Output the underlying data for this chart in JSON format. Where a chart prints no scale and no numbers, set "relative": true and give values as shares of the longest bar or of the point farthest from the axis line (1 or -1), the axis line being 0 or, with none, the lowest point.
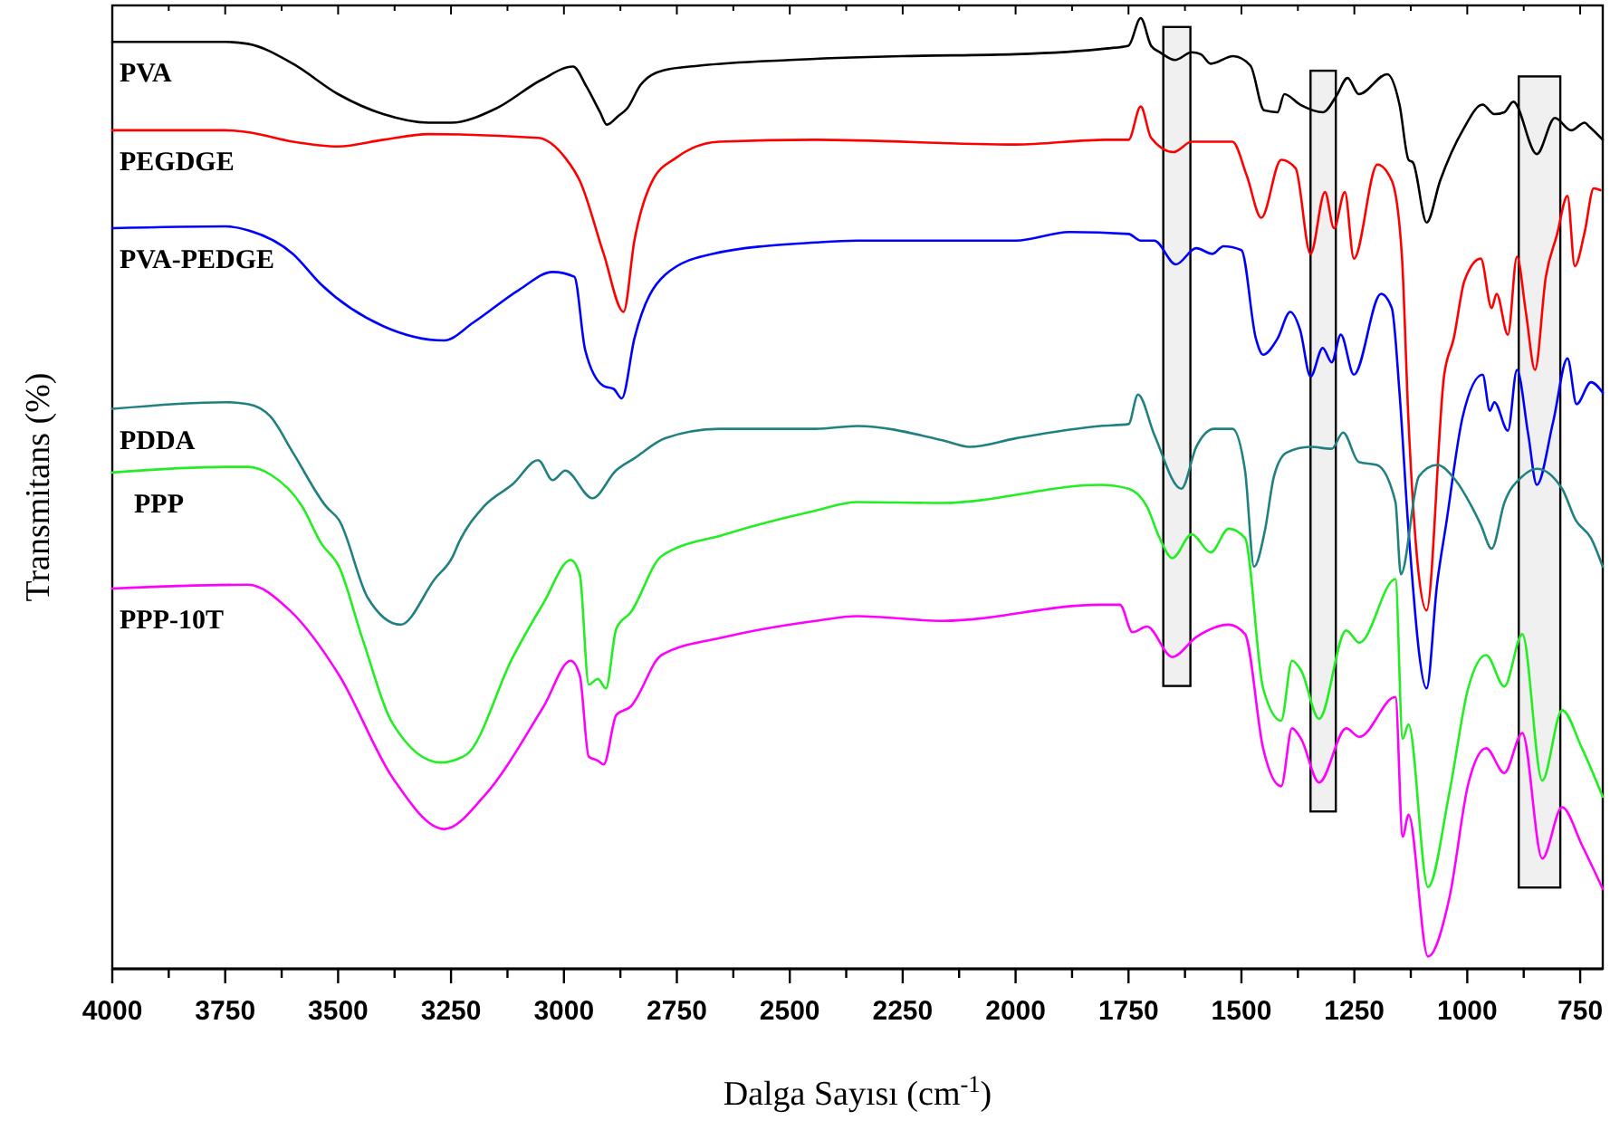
{
  "chart_data": {
    "type": "line",
    "relative": true,
    "xlabel": "Dalga Sayısı (cm$^{-1}$)",
    "ylabel": "Transmitans (%)",
    "xlim": [
      4000,
      700
    ],
    "xticks": [
      4000,
      {
        "value": 3875,
        "label": null
      },
      3750,
      {
        "value": 3625,
        "label": null
      },
      3500,
      {
        "value": 3375,
        "label": null
      },
      3250,
      {
        "value": 3125,
        "label": null
      },
      3000,
      {
        "value": 2875,
        "label": null
      },
      2750,
      {
        "value": 2625,
        "label": null
      },
      2500,
      {
        "value": 2375,
        "label": null
      },
      2250,
      {
        "value": 2125,
        "label": null
      },
      2000,
      {
        "value": 1875,
        "label": null
      },
      1750,
      {
        "value": 1625,
        "label": null
      },
      1500,
      {
        "value": 1375,
        "label": null
      },
      1250,
      {
        "value": 1125,
        "label": null
      },
      1000,
      {
        "value": 875,
        "label": null
      },
      750
    ],
    "marker": "none",
    "line_style": "solid",
    "grid": false,
    "legend": false,
    "bands": [
      {
        "axis": "x",
        "from": 1673,
        "to": 1613,
        "color": "#000000"
      },
      {
        "axis": "x",
        "from": 1347,
        "to": 1291,
        "color": "#000000"
      },
      {
        "axis": "x",
        "from": 886,
        "to": 794,
        "color": "#000000"
      }
    ],
    "series": [
      {
        "name": "PVA",
        "color": "#000000",
        "x": [
          4000,
          3750,
          3700,
          3600,
          3500,
          3400,
          3300,
          3250,
          3150,
          3050,
          2980,
          2950,
          2920,
          2905,
          2880,
          2860,
          2830,
          2780,
          2700,
          2500,
          2250,
          2000,
          1800,
          1750,
          1723,
          1700,
          1680,
          1647,
          1610,
          1590,
          1568,
          1518,
          1480,
          1450,
          1420,
          1405,
          1370,
          1319,
          1290,
          1265,
          1240,
          1177,
          1150,
          1130,
          1120,
          1090,
          1060,
          1010,
          966,
          940,
          918,
          898,
          846,
          806,
          770,
          740,
          730,
          700
        ],
        "values": [
          0.975,
          0.975,
          0.973,
          0.952,
          0.92,
          0.899,
          0.89,
          0.89,
          0.905,
          0.935,
          0.949,
          0.928,
          0.901,
          0.888,
          0.897,
          0.905,
          0.93,
          0.945,
          0.95,
          0.956,
          0.96,
          0.962,
          0.968,
          0.971,
          1.0,
          0.971,
          0.964,
          0.956,
          0.964,
          0.962,
          0.952,
          0.96,
          0.95,
          0.903,
          0.901,
          0.92,
          0.909,
          0.901,
          0.918,
          0.937,
          0.92,
          0.941,
          0.909,
          0.851,
          0.848,
          0.785,
          0.829,
          0.882,
          0.909,
          0.899,
          0.901,
          0.912,
          0.857,
          0.895,
          0.882,
          0.89,
          0.886,
          0.872
        ]
      },
      {
        "name": "PEGDGE",
        "color": "#ff0000",
        "x": [
          4000,
          3750,
          3700,
          3600,
          3500,
          3400,
          3300,
          3057,
          2997,
          2965,
          2912,
          2868,
          2844,
          2804,
          2752,
          2656,
          2443,
          2000,
          1800,
          1750,
          1723,
          1700,
          1650,
          1610,
          1520,
          1488,
          1456,
          1412,
          1380,
          1347,
          1315,
          1295,
          1271,
          1251,
          1199,
          1167,
          1145,
          1130,
          1090,
          1051,
          1030,
          1006,
          970,
          946,
          935,
          910,
          890,
          870,
          850,
          826,
          802,
          778,
          762,
          740,
          720,
          705
        ],
        "values": [
          0.882,
          0.882,
          0.88,
          0.87,
          0.865,
          0.872,
          0.878,
          0.874,
          0.853,
          0.829,
          0.752,
          0.691,
          0.766,
          0.829,
          0.853,
          0.87,
          0.872,
          0.867,
          0.872,
          0.872,
          0.907,
          0.874,
          0.859,
          0.87,
          0.87,
          0.834,
          0.79,
          0.851,
          0.842,
          0.752,
          0.817,
          0.779,
          0.817,
          0.747,
          0.846,
          0.829,
          0.752,
          0.575,
          0.377,
          0.625,
          0.663,
          0.724,
          0.747,
          0.695,
          0.71,
          0.667,
          0.749,
          0.69,
          0.63,
          0.728,
          0.771,
          0.813,
          0.739,
          0.775,
          0.821,
          0.819
        ]
      },
      {
        "name": "PVA-PEDGE",
        "color": "#0000ff",
        "x": [
          4000,
          3750,
          3700,
          3600,
          3538,
          3400,
          3265,
          3200,
          3100,
          3025,
          2977,
          2953,
          2912,
          2890,
          2872,
          2844,
          2776,
          2672,
          2443,
          2351,
          2000,
          1881,
          1750,
          1723,
          1693,
          1645,
          1600,
          1564,
          1540,
          1500,
          1468,
          1452,
          1420,
          1392,
          1370,
          1347,
          1320,
          1300,
          1280,
          1251,
          1191,
          1167,
          1150,
          1130,
          1090,
          1067,
          1047,
          1010,
          966,
          950,
          940,
          910,
          890,
          865,
          846,
          810,
          778,
          758,
          726,
          700
        ],
        "values": [
          0.779,
          0.781,
          0.777,
          0.752,
          0.72,
          0.676,
          0.661,
          0.68,
          0.714,
          0.733,
          0.728,
          0.651,
          0.613,
          0.61,
          0.6,
          0.663,
          0.73,
          0.752,
          0.764,
          0.766,
          0.766,
          0.775,
          0.773,
          0.766,
          0.766,
          0.741,
          0.758,
          0.752,
          0.76,
          0.756,
          0.663,
          0.646,
          0.663,
          0.691,
          0.672,
          0.623,
          0.653,
          0.638,
          0.667,
          0.625,
          0.71,
          0.695,
          0.606,
          0.461,
          0.295,
          0.404,
          0.467,
          0.581,
          0.625,
          0.587,
          0.596,
          0.566,
          0.63,
          0.562,
          0.509,
          0.575,
          0.642,
          0.594,
          0.617,
          0.606
        ]
      },
      {
        "name": "PDDA",
        "color": "#218080",
        "x": [
          4000,
          3750,
          3700,
          3650,
          3600,
          3526,
          3498,
          3434,
          3362,
          3286,
          3246,
          3233,
          3178,
          3113,
          3057,
          3025,
          2997,
          2937,
          2885,
          2844,
          2776,
          2656,
          2443,
          2351,
          2162,
          2102,
          2000,
          1813,
          1750,
          1729,
          1693,
          1633,
          1600,
          1560,
          1520,
          1492,
          1472,
          1448,
          1428,
          1400,
          1347,
          1300,
          1275,
          1240,
          1200,
          1159,
          1147,
          1107,
          1067,
          1026,
          990,
          970,
          946,
          918,
          878,
          846,
          790,
          760,
          726,
          700
        ],
        "values": [
          0.589,
          0.596,
          0.594,
          0.581,
          0.543,
          0.486,
          0.472,
          0.39,
          0.362,
          0.41,
          0.434,
          0.448,
          0.486,
          0.51,
          0.535,
          0.514,
          0.524,
          0.495,
          0.524,
          0.537,
          0.558,
          0.568,
          0.568,
          0.571,
          0.556,
          0.549,
          0.558,
          0.571,
          0.573,
          0.604,
          0.562,
          0.505,
          0.549,
          0.568,
          0.568,
          0.524,
          0.423,
          0.461,
          0.518,
          0.543,
          0.549,
          0.547,
          0.564,
          0.533,
          0.53,
          0.491,
          0.415,
          0.518,
          0.53,
          0.514,
          0.486,
          0.467,
          0.442,
          0.49,
          0.518,
          0.526,
          0.505,
          0.472,
          0.453,
          0.423
        ]
      },
      {
        "name": "PPP",
        "color": "#22ee22",
        "x": [
          4000,
          3750,
          3700,
          3650,
          3579,
          3538,
          3498,
          3446,
          3378,
          3273,
          3217,
          3113,
          3045,
          2985,
          2965,
          2945,
          2925,
          2907,
          2884,
          2852,
          2784,
          2644,
          2443,
          2351,
          2162,
          1813,
          1750,
          1709,
          1681,
          1653,
          1610,
          1568,
          1528,
          1492,
          1452,
          1412,
          1388,
          1368,
          1328,
          1268,
          1239,
          1159,
          1143,
          1130,
          1087,
          1039,
          998,
          958,
          918,
          878,
          834,
          790,
          746,
          700
        ],
        "values": [
          0.522,
          0.528,
          0.528,
          0.52,
          0.486,
          0.448,
          0.423,
          0.347,
          0.257,
          0.217,
          0.225,
          0.328,
          0.385,
          0.43,
          0.415,
          0.299,
          0.305,
          0.295,
          0.358,
          0.375,
          0.434,
          0.457,
          0.482,
          0.491,
          0.49,
          0.509,
          0.505,
          0.486,
          0.453,
          0.432,
          0.457,
          0.438,
          0.463,
          0.453,
          0.295,
          0.261,
          0.324,
          0.314,
          0.263,
          0.356,
          0.343,
          0.41,
          0.242,
          0.257,
          0.086,
          0.187,
          0.295,
          0.33,
          0.297,
          0.352,
          0.198,
          0.272,
          0.232,
          0.181
        ]
      },
      {
        "name": "PPP-10T",
        "color": "#ff00ff",
        "x": [
          4000,
          3700,
          3607,
          3498,
          3378,
          3265,
          3178,
          3045,
          2985,
          2965,
          2945,
          2925,
          2912,
          2884,
          2852,
          2784,
          2644,
          2443,
          2351,
          2162,
          1813,
          1769,
          1741,
          1709,
          1653,
          1600,
          1528,
          1492,
          1452,
          1412,
          1388,
          1368,
          1328,
          1268,
          1239,
          1159,
          1143,
          1130,
          1087,
          1039,
          998,
          958,
          918,
          878,
          834,
          790,
          746,
          700
        ],
        "values": [
          0.4,
          0.404,
          0.377,
          0.309,
          0.2,
          0.147,
          0.181,
          0.276,
          0.324,
          0.309,
          0.223,
          0.219,
          0.215,
          0.267,
          0.276,
          0.33,
          0.349,
          0.366,
          0.371,
          0.366,
          0.383,
          0.383,
          0.354,
          0.36,
          0.328,
          0.349,
          0.362,
          0.352,
          0.232,
          0.192,
          0.253,
          0.242,
          0.196,
          0.253,
          0.244,
          0.286,
          0.139,
          0.162,
          0.013,
          0.076,
          0.194,
          0.232,
          0.206,
          0.248,
          0.116,
          0.17,
          0.13,
          0.084
        ]
      }
    ]
  }
}
